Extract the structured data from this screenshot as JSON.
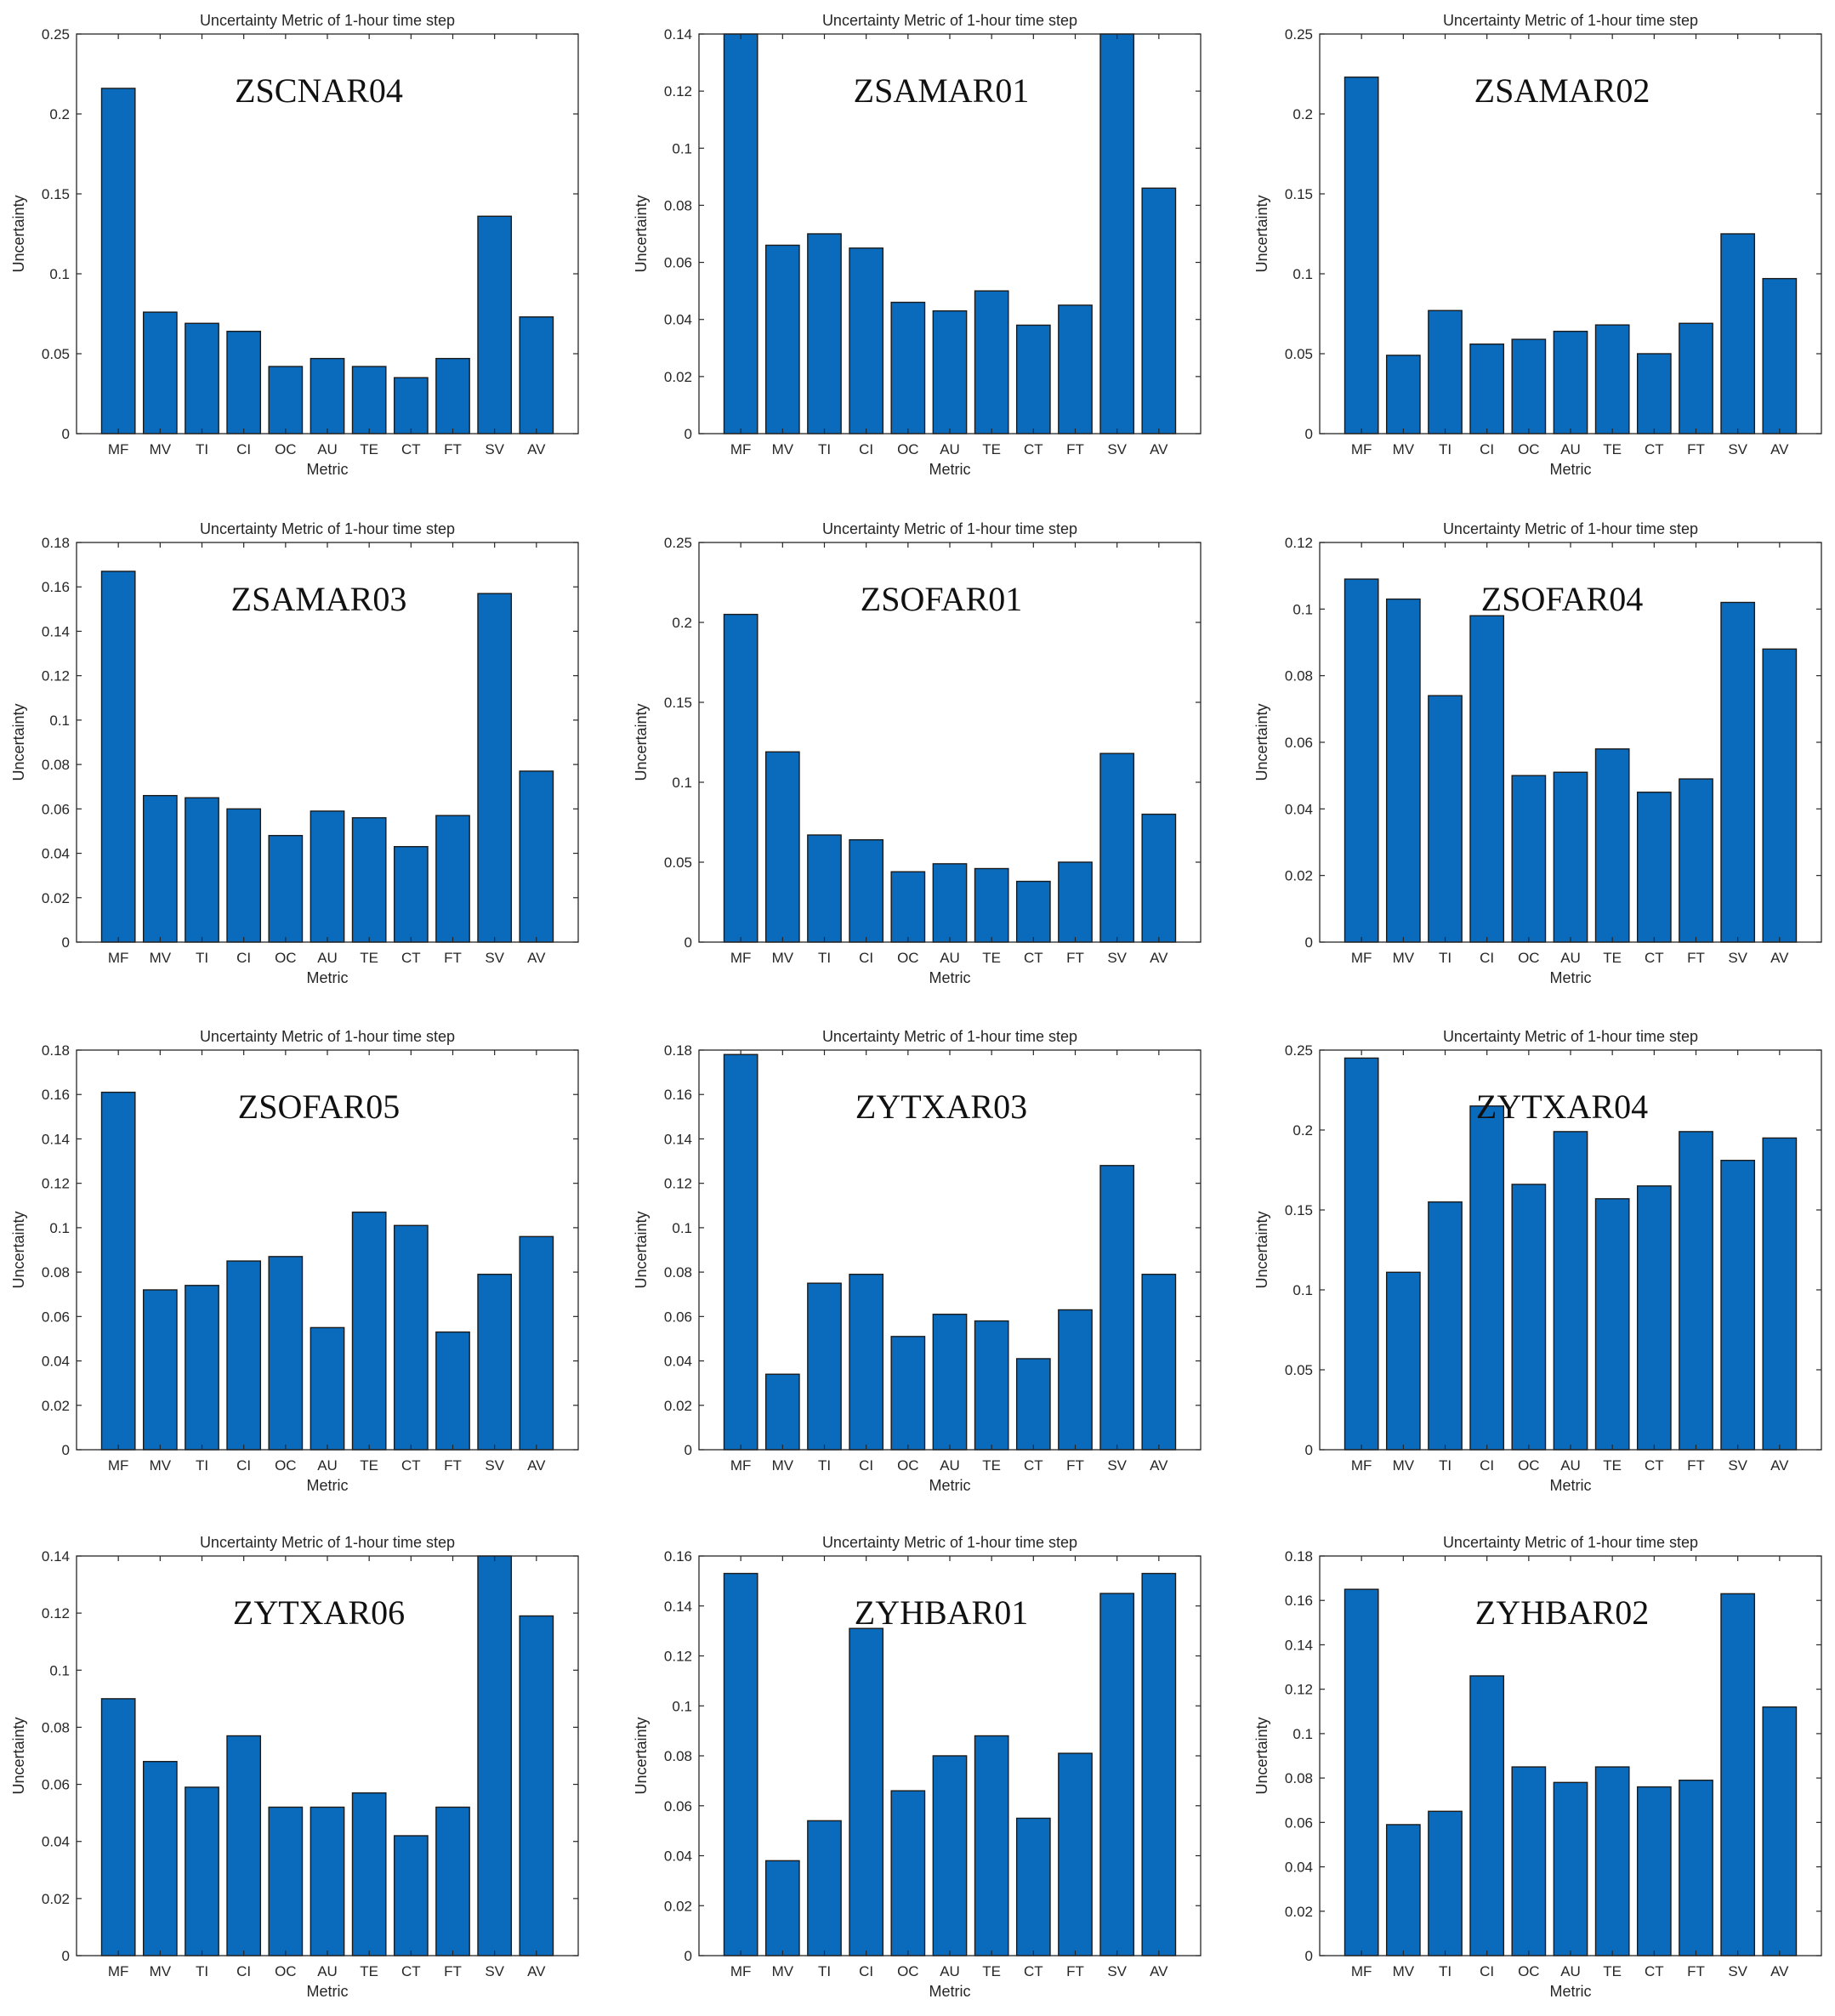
{
  "figure": {
    "panels_layout": "4 rows x 3 columns",
    "bar_color": "#0a6bbd",
    "bar_edge_color": "#1a1a1a",
    "axis_color": "#262626",
    "text_color": "#262626"
  },
  "chart_data": [
    {
      "type": "bar",
      "title": "Uncertainty Metric of 1-hour time step",
      "annotation": "ZSCNAR04",
      "xlabel": "Metric",
      "ylabel": "Uncertainty",
      "categories": [
        "MF",
        "MV",
        "TI",
        "CI",
        "OC",
        "AU",
        "TE",
        "CT",
        "FT",
        "SV",
        "AV"
      ],
      "values": [
        0.216,
        0.076,
        0.069,
        0.064,
        0.042,
        0.047,
        0.042,
        0.035,
        0.047,
        0.136,
        0.073
      ],
      "ylim": [
        0,
        0.25
      ],
      "yticks": [
        0,
        0.05,
        0.1,
        0.15,
        0.2,
        0.25
      ],
      "ytick_labels": [
        "0",
        "0.05",
        "0.1",
        "0.15",
        "0.2",
        "0.25"
      ]
    },
    {
      "type": "bar",
      "title": "Uncertainty Metric of 1-hour time step",
      "annotation": "ZSAMAR01",
      "xlabel": "Metric",
      "ylabel": "Uncertainty",
      "categories": [
        "MF",
        "MV",
        "TI",
        "CI",
        "OC",
        "AU",
        "TE",
        "CT",
        "FT",
        "SV",
        "AV"
      ],
      "values": [
        0.14,
        0.066,
        0.07,
        0.065,
        0.046,
        0.043,
        0.05,
        0.038,
        0.045,
        0.14,
        0.086
      ],
      "ylim": [
        0,
        0.14
      ],
      "yticks": [
        0,
        0.02,
        0.04,
        0.06,
        0.08,
        0.1,
        0.12,
        0.14
      ],
      "ytick_labels": [
        "0",
        "0.02",
        "0.04",
        "0.06",
        "0.08",
        "0.1",
        "0.12",
        "0.14"
      ]
    },
    {
      "type": "bar",
      "title": "Uncertainty Metric of 1-hour time step",
      "annotation": "ZSAMAR02",
      "xlabel": "Metric",
      "ylabel": "Uncertainty",
      "categories": [
        "MF",
        "MV",
        "TI",
        "CI",
        "OC",
        "AU",
        "TE",
        "CT",
        "FT",
        "SV",
        "AV"
      ],
      "values": [
        0.223,
        0.049,
        0.077,
        0.056,
        0.059,
        0.064,
        0.068,
        0.05,
        0.069,
        0.125,
        0.097
      ],
      "ylim": [
        0,
        0.25
      ],
      "yticks": [
        0,
        0.05,
        0.1,
        0.15,
        0.2,
        0.25
      ],
      "ytick_labels": [
        "0",
        "0.05",
        "0.1",
        "0.15",
        "0.2",
        "0.25"
      ]
    },
    {
      "type": "bar",
      "title": "Uncertainty Metric of 1-hour time step",
      "annotation": "ZSAMAR03",
      "xlabel": "Metric",
      "ylabel": "Uncertainty",
      "categories": [
        "MF",
        "MV",
        "TI",
        "CI",
        "OC",
        "AU",
        "TE",
        "CT",
        "FT",
        "SV",
        "AV"
      ],
      "values": [
        0.167,
        0.066,
        0.065,
        0.06,
        0.048,
        0.059,
        0.056,
        0.043,
        0.057,
        0.157,
        0.077
      ],
      "ylim": [
        0,
        0.18
      ],
      "yticks": [
        0,
        0.02,
        0.04,
        0.06,
        0.08,
        0.1,
        0.12,
        0.14,
        0.16,
        0.18
      ],
      "ytick_labels": [
        "0",
        "0.02",
        "0.04",
        "0.06",
        "0.08",
        "0.1",
        "0.12",
        "0.14",
        "0.16",
        "0.18"
      ]
    },
    {
      "type": "bar",
      "title": "Uncertainty Metric of 1-hour time step",
      "annotation": "ZSOFAR01",
      "xlabel": "Metric",
      "ylabel": "Uncertainty",
      "categories": [
        "MF",
        "MV",
        "TI",
        "CI",
        "OC",
        "AU",
        "TE",
        "CT",
        "FT",
        "SV",
        "AV"
      ],
      "values": [
        0.205,
        0.119,
        0.067,
        0.064,
        0.044,
        0.049,
        0.046,
        0.038,
        0.05,
        0.118,
        0.08
      ],
      "ylim": [
        0,
        0.25
      ],
      "yticks": [
        0,
        0.05,
        0.1,
        0.15,
        0.2,
        0.25
      ],
      "ytick_labels": [
        "0",
        "0.05",
        "0.1",
        "0.15",
        "0.2",
        "0.25"
      ]
    },
    {
      "type": "bar",
      "title": "Uncertainty Metric of 1-hour time step",
      "annotation": "ZSOFAR04",
      "xlabel": "Metric",
      "ylabel": "Uncertainty",
      "categories": [
        "MF",
        "MV",
        "TI",
        "CI",
        "OC",
        "AU",
        "TE",
        "CT",
        "FT",
        "SV",
        "AV"
      ],
      "values": [
        0.109,
        0.103,
        0.074,
        0.098,
        0.05,
        0.051,
        0.058,
        0.045,
        0.049,
        0.102,
        0.088
      ],
      "ylim": [
        0,
        0.12
      ],
      "yticks": [
        0,
        0.02,
        0.04,
        0.06,
        0.08,
        0.1,
        0.12
      ],
      "ytick_labels": [
        "0",
        "0.02",
        "0.04",
        "0.06",
        "0.08",
        "0.1",
        "0.12"
      ]
    },
    {
      "type": "bar",
      "title": "Uncertainty Metric of 1-hour time step",
      "annotation": "ZSOFAR05",
      "xlabel": "Metric",
      "ylabel": "Uncertainty",
      "categories": [
        "MF",
        "MV",
        "TI",
        "CI",
        "OC",
        "AU",
        "TE",
        "CT",
        "FT",
        "SV",
        "AV"
      ],
      "values": [
        0.161,
        0.072,
        0.074,
        0.085,
        0.087,
        0.055,
        0.107,
        0.101,
        0.053,
        0.079,
        0.096
      ],
      "ylim": [
        0,
        0.18
      ],
      "yticks": [
        0,
        0.02,
        0.04,
        0.06,
        0.08,
        0.1,
        0.12,
        0.14,
        0.16,
        0.18
      ],
      "ytick_labels": [
        "0",
        "0.02",
        "0.04",
        "0.06",
        "0.08",
        "0.1",
        "0.12",
        "0.14",
        "0.16",
        "0.18"
      ]
    },
    {
      "type": "bar",
      "title": "Uncertainty Metric of 1-hour time step",
      "annotation": "ZYTXAR03",
      "xlabel": "Metric",
      "ylabel": "Uncertainty",
      "categories": [
        "MF",
        "MV",
        "TI",
        "CI",
        "OC",
        "AU",
        "TE",
        "CT",
        "FT",
        "SV",
        "AV"
      ],
      "values": [
        0.178,
        0.034,
        0.075,
        0.079,
        0.051,
        0.061,
        0.058,
        0.041,
        0.063,
        0.128,
        0.079
      ],
      "ylim": [
        0,
        0.18
      ],
      "yticks": [
        0,
        0.02,
        0.04,
        0.06,
        0.08,
        0.1,
        0.12,
        0.14,
        0.16,
        0.18
      ],
      "ytick_labels": [
        "0",
        "0.02",
        "0.04",
        "0.06",
        "0.08",
        "0.1",
        "0.12",
        "0.14",
        "0.16",
        "0.18"
      ]
    },
    {
      "type": "bar",
      "title": "Uncertainty Metric of 1-hour time step",
      "annotation": "ZYTXAR04",
      "xlabel": "Metric",
      "ylabel": "Uncertainty",
      "categories": [
        "MF",
        "MV",
        "TI",
        "CI",
        "OC",
        "AU",
        "TE",
        "CT",
        "FT",
        "SV",
        "AV"
      ],
      "values": [
        0.245,
        0.111,
        0.155,
        0.215,
        0.166,
        0.199,
        0.157,
        0.165,
        0.199,
        0.181,
        0.195
      ],
      "ylim": [
        0,
        0.25
      ],
      "yticks": [
        0,
        0.05,
        0.1,
        0.15,
        0.2,
        0.25
      ],
      "ytick_labels": [
        "0",
        "0.05",
        "0.1",
        "0.15",
        "0.2",
        "0.25"
      ]
    },
    {
      "type": "bar",
      "title": "Uncertainty Metric of 1-hour time step",
      "annotation": "ZYTXAR06",
      "xlabel": "Metric",
      "ylabel": "Uncertainty",
      "categories": [
        "MF",
        "MV",
        "TI",
        "CI",
        "OC",
        "AU",
        "TE",
        "CT",
        "FT",
        "SV",
        "AV"
      ],
      "values": [
        0.09,
        0.068,
        0.059,
        0.077,
        0.052,
        0.052,
        0.057,
        0.042,
        0.052,
        0.14,
        0.119
      ],
      "ylim": [
        0,
        0.14
      ],
      "yticks": [
        0,
        0.02,
        0.04,
        0.06,
        0.08,
        0.1,
        0.12,
        0.14
      ],
      "ytick_labels": [
        "0",
        "0.02",
        "0.04",
        "0.06",
        "0.08",
        "0.1",
        "0.12",
        "0.14"
      ]
    },
    {
      "type": "bar",
      "title": "Uncertainty Metric of 1-hour time step",
      "annotation": "ZYHBAR01",
      "xlabel": "Metric",
      "ylabel": "Uncertainty",
      "categories": [
        "MF",
        "MV",
        "TI",
        "CI",
        "OC",
        "AU",
        "TE",
        "CT",
        "FT",
        "SV",
        "AV"
      ],
      "values": [
        0.153,
        0.038,
        0.054,
        0.131,
        0.066,
        0.08,
        0.088,
        0.055,
        0.081,
        0.145,
        0.153
      ],
      "ylim": [
        0,
        0.16
      ],
      "yticks": [
        0,
        0.02,
        0.04,
        0.06,
        0.08,
        0.1,
        0.12,
        0.14,
        0.16
      ],
      "ytick_labels": [
        "0",
        "0.02",
        "0.04",
        "0.06",
        "0.08",
        "0.1",
        "0.12",
        "0.14",
        "0.16"
      ]
    },
    {
      "type": "bar",
      "title": "Uncertainty Metric of 1-hour time step",
      "annotation": "ZYHBAR02",
      "xlabel": "Metric",
      "ylabel": "Uncertainty",
      "categories": [
        "MF",
        "MV",
        "TI",
        "CI",
        "OC",
        "AU",
        "TE",
        "CT",
        "FT",
        "SV",
        "AV"
      ],
      "values": [
        0.165,
        0.059,
        0.065,
        0.126,
        0.085,
        0.078,
        0.085,
        0.076,
        0.079,
        0.163,
        0.112
      ],
      "ylim": [
        0,
        0.18
      ],
      "yticks": [
        0,
        0.02,
        0.04,
        0.06,
        0.08,
        0.1,
        0.12,
        0.14,
        0.16,
        0.18
      ],
      "ytick_labels": [
        "0",
        "0.02",
        "0.04",
        "0.06",
        "0.08",
        "0.1",
        "0.12",
        "0.14",
        "0.16",
        "0.18"
      ]
    }
  ]
}
